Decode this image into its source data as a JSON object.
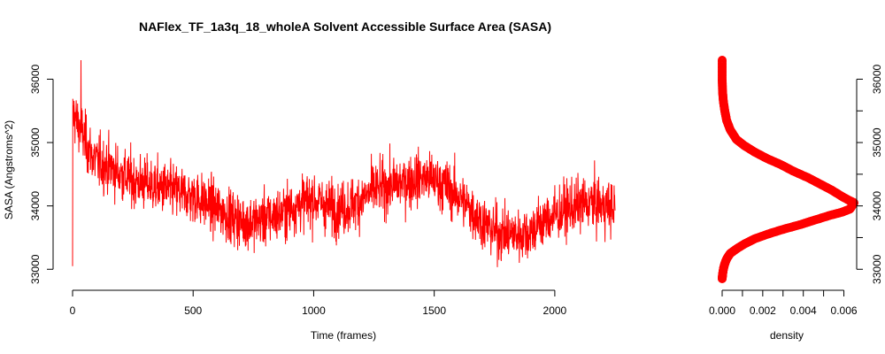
{
  "chart_data": [
    {
      "type": "line",
      "title": "NAFlex_TF_1a3q_18_wholeA Solvent Accessible Surface Area (SASA)",
      "xlabel": "Time (frames)",
      "ylabel": "SASA (Angstroms^2)",
      "xlim": [
        0,
        2250
      ],
      "ylim": [
        32850,
        36300
      ],
      "x_ticks": [
        0,
        500,
        1000,
        1500,
        2000
      ],
      "y_ticks": [
        33000,
        34000,
        35000,
        36000
      ],
      "grid": false,
      "legend": "none",
      "color": "#ff0000",
      "series": [
        {
          "x": [
            0,
            10,
            20,
            30,
            40,
            60,
            80,
            100,
            130,
            160,
            200,
            250,
            300,
            350,
            400,
            450,
            500,
            550,
            600,
            650,
            700,
            750,
            800,
            850,
            900,
            950,
            1000,
            1050,
            1100,
            1150,
            1200,
            1250,
            1300,
            1350,
            1400,
            1450,
            1500,
            1550,
            1600,
            1650,
            1700,
            1750,
            1800,
            1850,
            1900,
            1950,
            2000,
            2050,
            2100,
            2150,
            2200,
            2250
          ],
          "y": [
            35500,
            35400,
            35300,
            35250,
            35150,
            34950,
            34800,
            34700,
            34650,
            34600,
            34500,
            34400,
            34350,
            34300,
            34250,
            34200,
            34150,
            34050,
            33950,
            33850,
            33750,
            33750,
            33800,
            33850,
            33950,
            34050,
            34100,
            34000,
            33950,
            34000,
            34100,
            34250,
            34300,
            34350,
            34400,
            34450,
            34400,
            34300,
            34150,
            33950,
            33750,
            33600,
            33550,
            33550,
            33600,
            33750,
            33850,
            33950,
            34000,
            34050,
            34000,
            33950
          ]
        }
      ]
    },
    {
      "type": "scatter",
      "xlabel": "density",
      "ylabel": "",
      "xlim": [
        0,
        0.0065
      ],
      "ylim": [
        32850,
        36300
      ],
      "x_ticks": [
        0.0,
        0.002,
        0.004,
        0.006
      ],
      "x_tick_labels": [
        "0.000",
        "0.002",
        "0.004",
        "0.006"
      ],
      "y_ticks": [
        33000,
        34000,
        35000,
        36000
      ],
      "grid": false,
      "legend": "none",
      "color": "#ff0000",
      "series": [
        {
          "x": [
            0.0,
            0.0,
            2e-05,
            6e-05,
            0.00013,
            0.00022,
            0.0004,
            0.0007,
            0.0011,
            0.0016,
            0.0022,
            0.0029,
            0.0035,
            0.0042,
            0.0048,
            0.0054,
            0.0059,
            0.0063,
            0.0065,
            0.0063,
            0.0059,
            0.0053,
            0.0046,
            0.0038,
            0.003,
            0.0023,
            0.0016,
            0.0011,
            0.0007,
            0.0004,
            0.00023,
            0.00012,
            6e-05,
            2e-05,
            0.0
          ],
          "y": [
            36300,
            36000,
            35800,
            35650,
            35500,
            35350,
            35200,
            35050,
            34950,
            34850,
            34750,
            34650,
            34550,
            34450,
            34350,
            34250,
            34150,
            34080,
            34050,
            33950,
            33900,
            33850,
            33780,
            33700,
            33630,
            33560,
            33480,
            33400,
            33320,
            33250,
            33170,
            33080,
            33000,
            32920,
            32850
          ]
        }
      ]
    }
  ]
}
